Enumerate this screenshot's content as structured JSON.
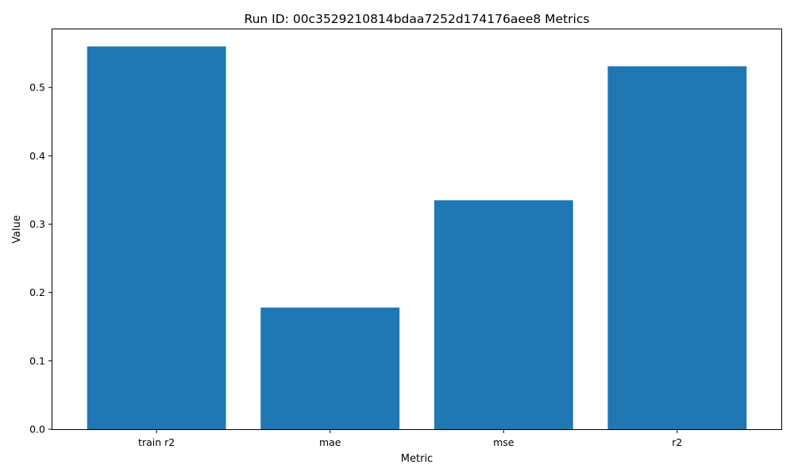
{
  "chart_data": {
    "type": "bar",
    "title": "Run ID: 00c3529210814bdaa7252d174176aee8 Metrics",
    "xlabel": "Metric",
    "ylabel": "Value",
    "categories": [
      "train r2",
      "mae",
      "mse",
      "r2"
    ],
    "values": [
      0.56,
      0.178,
      0.335,
      0.531
    ],
    "ylim": [
      0,
      0.585
    ],
    "yticks": [
      0.0,
      0.1,
      0.2,
      0.3,
      0.4,
      0.5
    ],
    "ytick_labels": [
      "0.0",
      "0.1",
      "0.2",
      "0.3",
      "0.4",
      "0.5"
    ],
    "bar_color": "#1f77b4",
    "grid": false,
    "legend": "none"
  }
}
